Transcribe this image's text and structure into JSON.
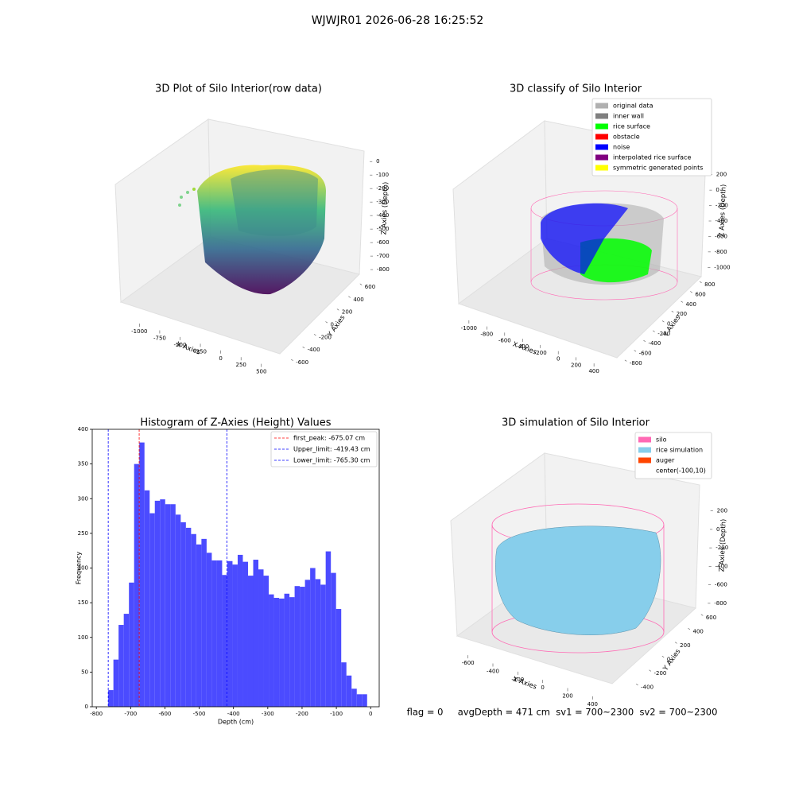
{
  "title": "WJWJR01 2026-06-28 16:25:52",
  "footer": "flag = 0     avgDepth = 471 cm  sv1 = 700~2300  sv2 = 700~2300",
  "chart_data": [
    {
      "type": "scatter3d",
      "title": "3D Plot of Silo Interior(row data)",
      "xlabel": "X Axies",
      "ylabel": "Y Axies",
      "zlabel": "Z Axies (Depth)",
      "xlim": [
        -1150,
        600
      ],
      "xticks": [
        -1000,
        -750,
        -500,
        -250,
        0,
        250,
        500
      ],
      "ylim": [
        -700,
        700
      ],
      "yticks": [
        -600,
        -400,
        -200,
        0,
        200,
        400,
        600
      ],
      "zlim": [
        -870,
        60
      ],
      "zticks": [
        -800,
        -700,
        -600,
        -500,
        -400,
        -300,
        -200,
        -100,
        0
      ]
    },
    {
      "type": "scatter3d",
      "title": "3D classify of Silo Interior",
      "xlabel": "X Axies",
      "ylabel": "Y Axies",
      "zlabel": "Z Axies (Depth)",
      "xlim": [
        -1150,
        550
      ],
      "xticks": [
        -1000,
        -800,
        -600,
        -400,
        -200,
        0,
        200,
        400
      ],
      "ylim": [
        -900,
        900
      ],
      "yticks": [
        -800,
        -600,
        -400,
        -200,
        0,
        200,
        400,
        600,
        800
      ],
      "zlim": [
        -1100,
        300
      ],
      "zticks": [
        -1000,
        -800,
        -600,
        -400,
        -200,
        0,
        200
      ],
      "legend": [
        {
          "name": "original data",
          "color": "#b0b0b0"
        },
        {
          "name": "inner wall",
          "color": "#808080"
        },
        {
          "name": "rice surface",
          "color": "#00ff00"
        },
        {
          "name": "obstacle",
          "color": "#ff0000"
        },
        {
          "name": "noise",
          "color": "#0000ff"
        },
        {
          "name": "interpolated rice surface",
          "color": "#800080"
        },
        {
          "name": "symmetric generated points",
          "color": "#ffff00"
        }
      ]
    },
    {
      "type": "histogram",
      "title": "Histogram of Z-Axies (Height) Values",
      "xlabel": "Depth (cm)",
      "ylabel": "Frequency",
      "color": "#4b4bff",
      "bins": [
        -765.3,
        -750.2,
        -735.1,
        -720.0,
        -704.9,
        -689.8,
        -674.7,
        -659.6,
        -644.5,
        -629.4,
        -614.3,
        -599.2,
        -584.1,
        -569.0,
        -553.9,
        -538.8,
        -523.7,
        -508.6,
        -493.5,
        -478.4,
        -463.3,
        -448.2,
        -433.1,
        -418.0,
        -402.9,
        -387.8,
        -372.7,
        -357.6,
        -342.5,
        -327.4,
        -312.3,
        -297.2,
        -282.1,
        -267.0,
        -251.9,
        -236.8,
        -221.7,
        -206.6,
        -191.5,
        -176.4,
        -161.3,
        -146.2,
        -131.1,
        -116.0,
        -100.9,
        -85.8,
        -70.7,
        -55.6,
        -40.5,
        -25.4,
        -10.3
      ],
      "values": [
        24,
        68,
        118,
        134,
        179,
        350,
        381,
        312,
        279,
        297,
        299,
        292,
        292,
        277,
        266,
        258,
        249,
        234,
        242,
        222,
        211,
        211,
        190,
        210,
        205,
        219,
        209,
        189,
        212,
        198,
        189,
        162,
        157,
        156,
        163,
        158,
        174,
        173,
        183,
        200,
        184,
        176,
        224,
        193,
        141,
        64,
        45,
        26,
        18,
        18
      ],
      "xlim": [
        -812,
        25
      ],
      "xticks": [
        -800,
        -700,
        -600,
        -500,
        -400,
        -300,
        -200,
        -100,
        0
      ],
      "ylim": [
        0,
        400
      ],
      "yticks": [
        0,
        50,
        100,
        150,
        200,
        250,
        300,
        350,
        400
      ],
      "lines": [
        {
          "name": "first_peak: -675.07 cm",
          "value": -675.07,
          "color": "#ff0000"
        },
        {
          "name": "Upper_limit: -419.43 cm",
          "value": -419.43,
          "color": "#0000ff"
        },
        {
          "name": "Lower_limit: -765.30 cm",
          "value": -765.3,
          "color": "#0000ff"
        }
      ]
    },
    {
      "type": "surface3d",
      "title": "3D simulation of Silo Interior",
      "xlabel": "X Axies",
      "ylabel": "Y Axies",
      "zlabel": "Z Axies (Depth)",
      "xlim": [
        -700,
        500
      ],
      "xticks": [
        -600,
        -400,
        -200,
        0,
        200,
        400
      ],
      "ylim": [
        -500,
        700
      ],
      "yticks": [
        -400,
        -200,
        0,
        200,
        400,
        600
      ],
      "zlim": [
        -870,
        300
      ],
      "zticks": [
        -800,
        -600,
        -400,
        -200,
        0,
        200
      ],
      "legend": [
        {
          "name": "silo",
          "color": "#ff69b4"
        },
        {
          "name": "rice simulation",
          "color": "#87ceeb"
        },
        {
          "name": "auger",
          "color": "#ff4500"
        },
        {
          "name": "center(-100,10)",
          "color": null
        }
      ]
    }
  ]
}
